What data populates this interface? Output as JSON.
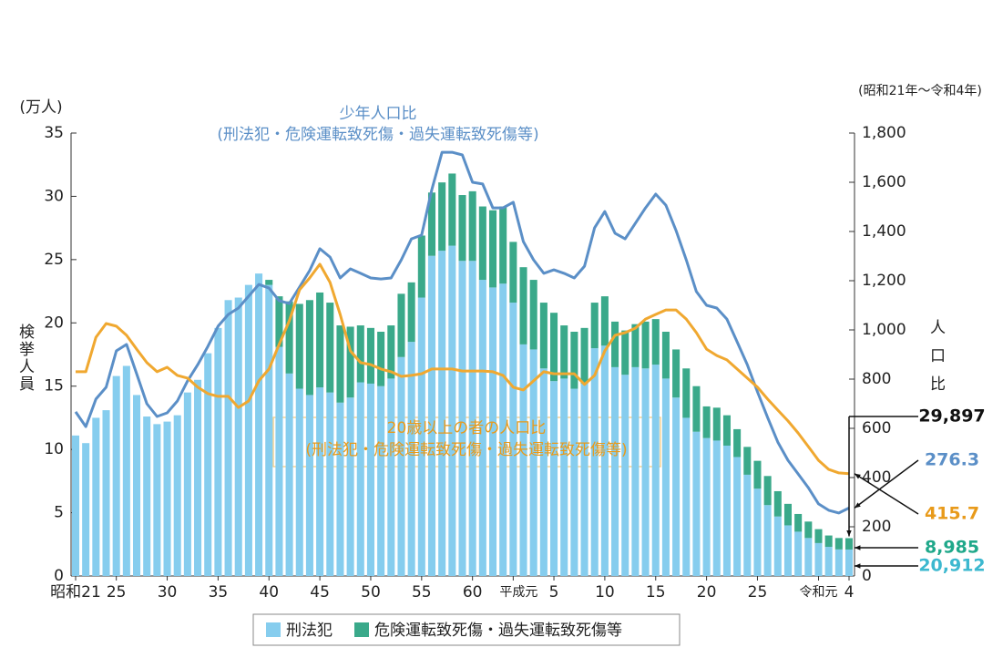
{
  "chart_data": {
    "type": "bar",
    "stacked": true,
    "period": "(昭和21年～令和4年)",
    "y_unit": "(万人)",
    "ylabel": "検挙人員",
    "y2label": "人口比",
    "categories": [
      "昭和21",
      null,
      null,
      null,
      "25",
      null,
      null,
      null,
      null,
      "30",
      null,
      null,
      null,
      null,
      "35",
      null,
      null,
      null,
      null,
      "40",
      null,
      null,
      null,
      null,
      "45",
      null,
      null,
      null,
      null,
      "50",
      null,
      null,
      null,
      null,
      "55",
      null,
      null,
      null,
      null,
      "60",
      null,
      null,
      null,
      "平成元",
      null,
      null,
      null,
      "5",
      null,
      null,
      null,
      null,
      "10",
      null,
      null,
      null,
      null,
      "15",
      null,
      null,
      null,
      null,
      "20",
      null,
      null,
      null,
      null,
      "25",
      null,
      null,
      null,
      null,
      null,
      "令和元",
      null,
      null,
      "4"
    ],
    "ylim": [
      0,
      35
    ],
    "yticks": [
      0,
      5,
      10,
      15,
      20,
      25,
      30,
      35
    ],
    "y2lim": [
      0,
      1800
    ],
    "y2ticks": [
      0,
      200,
      400,
      600,
      800,
      {
        "value": 1000,
        "label": "1,000"
      },
      {
        "value": 1200,
        "label": "1,200"
      },
      {
        "value": 1400,
        "label": "1,400"
      },
      {
        "value": 1600,
        "label": "1,600"
      },
      {
        "value": 1800,
        "label": "1,800"
      }
    ],
    "total_label": "29,897",
    "series": [
      {
        "name": "刑法犯",
        "type": "bar",
        "color": "#86cdee",
        "values": [
          11.1,
          10.5,
          12.5,
          13.1,
          15.8,
          16.6,
          14.3,
          12.6,
          12.0,
          12.2,
          12.7,
          14.5,
          15.5,
          17.6,
          19.6,
          21.8,
          22.0,
          23.0,
          23.9,
          23.0,
          18.1,
          16.0,
          14.8,
          14.3,
          14.9,
          14.5,
          13.7,
          14.1,
          15.3,
          15.2,
          15.0,
          15.6,
          17.3,
          18.5,
          22.0,
          25.3,
          25.7,
          26.1,
          24.9,
          24.9,
          23.4,
          22.8,
          23.1,
          21.6,
          18.3,
          17.9,
          16.4,
          15.4,
          15.6,
          14.8,
          15.2,
          18.0,
          18.2,
          16.5,
          15.9,
          16.5,
          16.4,
          16.7,
          15.6,
          14.1,
          12.5,
          11.4,
          10.9,
          10.7,
          10.3,
          9.4,
          8.0,
          6.9,
          5.6,
          4.7,
          4.0,
          3.5,
          3.0,
          2.6,
          2.3,
          2.1,
          2.0912
        ],
        "value_labels": [
          null,
          null,
          null,
          null,
          null,
          null,
          null,
          null,
          null,
          null,
          null,
          null,
          null,
          null,
          null,
          null,
          null,
          null,
          null,
          null,
          null,
          null,
          null,
          null,
          null,
          null,
          null,
          null,
          null,
          null,
          null,
          null,
          null,
          null,
          null,
          null,
          null,
          null,
          null,
          null,
          null,
          null,
          null,
          null,
          null,
          null,
          null,
          null,
          null,
          null,
          null,
          null,
          null,
          null,
          null,
          null,
          null,
          null,
          null,
          null,
          null,
          null,
          null,
          null,
          null,
          null,
          null,
          null,
          null,
          null,
          null,
          null,
          null,
          null,
          null,
          null,
          "20,912"
        ],
        "label_color": "#3cb8cf"
      },
      {
        "name": "危険運転致死傷・過失運転致死傷等",
        "type": "bar",
        "color": "#3aa98a",
        "values": [
          0,
          0,
          0,
          0,
          0,
          0,
          0,
          0,
          0,
          0,
          0,
          0,
          0,
          0,
          0,
          0,
          0,
          0,
          0,
          0.4,
          4.0,
          5.7,
          6.7,
          7.5,
          7.5,
          7.1,
          6.1,
          5.6,
          4.5,
          4.4,
          4.3,
          4.2,
          5.0,
          4.7,
          4.9,
          5.0,
          5.4,
          5.7,
          5.2,
          5.5,
          5.8,
          6.1,
          6.1,
          4.8,
          6.1,
          5.5,
          5.2,
          5.4,
          4.2,
          4.5,
          4.4,
          3.6,
          3.9,
          3.6,
          3.5,
          3.4,
          3.7,
          3.6,
          3.7,
          3.8,
          3.9,
          3.6,
          2.5,
          2.6,
          2.4,
          2.2,
          2.2,
          2.2,
          2.3,
          2.0,
          1.7,
          1.4,
          1.3,
          1.1,
          0.9,
          0.9,
          0.8985
        ],
        "value_labels": [
          null,
          null,
          null,
          null,
          null,
          null,
          null,
          null,
          null,
          null,
          null,
          null,
          null,
          null,
          null,
          null,
          null,
          null,
          null,
          null,
          null,
          null,
          null,
          null,
          null,
          null,
          null,
          null,
          null,
          null,
          null,
          null,
          null,
          null,
          null,
          null,
          null,
          null,
          null,
          null,
          null,
          null,
          null,
          null,
          null,
          null,
          null,
          null,
          null,
          null,
          null,
          null,
          null,
          null,
          null,
          null,
          null,
          null,
          null,
          null,
          null,
          null,
          null,
          null,
          null,
          null,
          null,
          null,
          null,
          null,
          null,
          null,
          null,
          null,
          null,
          null,
          "8,985"
        ],
        "label_color": "#1fa88a"
      },
      {
        "name": "少年人口比",
        "sublabel": "(刑法犯・危険運転致死傷・過失運転致死傷等)",
        "type": "line",
        "axis": "y2",
        "color": "#5b8fc7",
        "values": [
          667,
          607,
          719,
          767,
          915,
          941,
          822,
          700,
          648,
          663,
          711,
          793,
          859,
          933,
          1015,
          1063,
          1089,
          1137,
          1185,
          1170,
          1119,
          1107,
          1174,
          1241,
          1330,
          1296,
          1211,
          1248,
          1230,
          1211,
          1207,
          1211,
          1285,
          1370,
          1385,
          1570,
          1722,
          1722,
          1711,
          1600,
          1593,
          1496,
          1496,
          1519,
          1359,
          1285,
          1230,
          1244,
          1230,
          1211,
          1259,
          1415,
          1481,
          1393,
          1370,
          1433,
          1496,
          1552,
          1507,
          1404,
          1285,
          1156,
          1100,
          1089,
          1044,
          952,
          859,
          748,
          644,
          544,
          470,
          415,
          359,
          293,
          267,
          256,
          276.3
        ],
        "label_color": "#5b8fc7"
      },
      {
        "name": "20歳以上の者の人口比",
        "sublabel": "(刑法犯・危険運転致死傷・過失運転致死傷等)",
        "type": "line",
        "axis": "y2",
        "color": "#f0a830",
        "values": [
          830,
          830,
          970,
          1026,
          1015,
          978,
          922,
          867,
          830,
          848,
          815,
          804,
          767,
          741,
          730,
          730,
          685,
          711,
          793,
          841,
          941,
          1037,
          1163,
          1211,
          1267,
          1193,
          1063,
          915,
          867,
          859,
          841,
          830,
          811,
          815,
          822,
          841,
          841,
          841,
          833,
          833,
          833,
          830,
          815,
          767,
          756,
          793,
          830,
          822,
          822,
          822,
          778,
          815,
          915,
          978,
          989,
          1007,
          1044,
          1063,
          1081,
          1081,
          1044,
          989,
          922,
          896,
          878,
          841,
          804,
          767,
          719,
          674,
          630,
          581,
          526,
          470,
          433,
          419,
          415.7
        ],
        "label_color": "#e89a1a"
      }
    ]
  }
}
